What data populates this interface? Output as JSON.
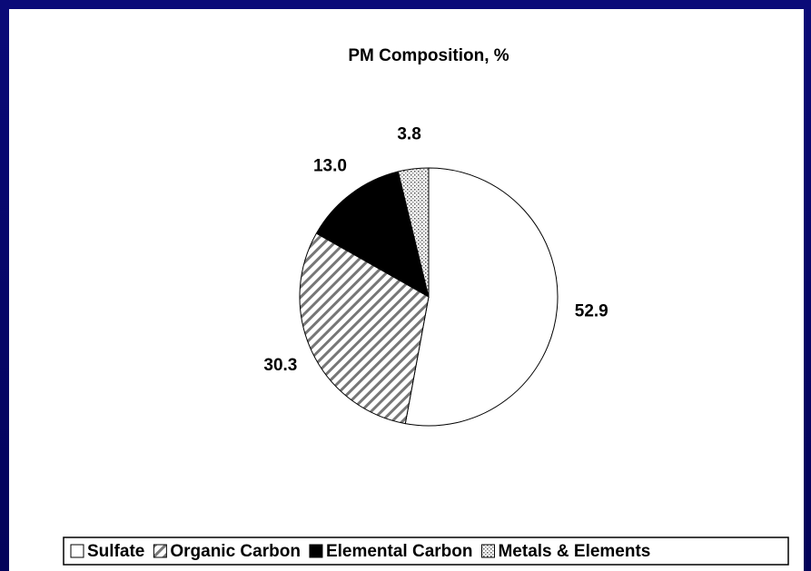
{
  "chart_data": {
    "type": "pie",
    "title": "PM Composition, %",
    "categories": [
      "Sulfate",
      "Organic Carbon",
      "Elemental Carbon",
      "Metals & Elements"
    ],
    "values": [
      52.9,
      30.3,
      13.0,
      3.8
    ],
    "value_labels": [
      "52.9",
      "30.3",
      "13.0",
      "3.8"
    ],
    "fills": [
      "white",
      "hatch",
      "black",
      "dots"
    ],
    "legend": "bottom"
  }
}
